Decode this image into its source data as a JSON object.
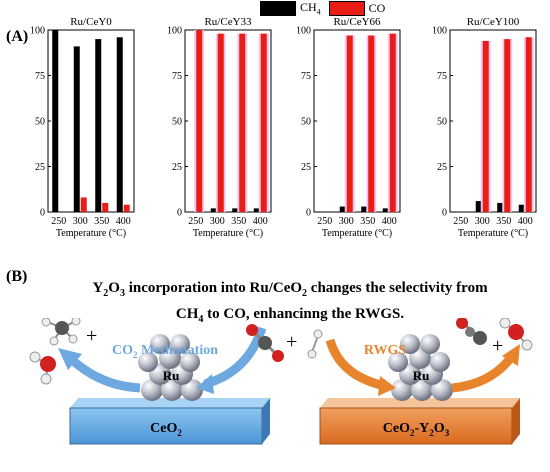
{
  "panel_a": {
    "label": "(A)"
  },
  "panel_b": {
    "label": "(B)"
  },
  "legend": [
    {
      "label_main": "CH",
      "label_sub": "4",
      "color": "#000000"
    },
    {
      "label_main": "CO",
      "label_sub": "",
      "color": "#e81e16"
    }
  ],
  "colors": {
    "ch4": "#000000",
    "co": "#e81e16",
    "glow": "#f7c6f0",
    "methanation_arrow": "#6ea8e0",
    "rwgs_arrow": "#e8842c",
    "ceo2_fill": "#6fb1e6",
    "mixed_fill": "#e8853a"
  },
  "chart_data": [
    {
      "type": "bar",
      "title": "Ru/CeY0",
      "categories": [
        "250",
        "300",
        "350",
        "400"
      ],
      "xlabel": "Temperature (°C)",
      "ylim": [
        0,
        100
      ],
      "yticks": [
        "0",
        "25",
        "50",
        "75",
        "100"
      ],
      "series": [
        {
          "name": "CH4",
          "values": [
            100,
            91,
            95,
            96
          ]
        },
        {
          "name": "CO",
          "values": [
            0,
            8,
            5,
            4
          ]
        }
      ]
    },
    {
      "type": "bar",
      "title": "Ru/CeY33",
      "categories": [
        "250",
        "300",
        "350",
        "400"
      ],
      "xlabel": "Temperature (°C)",
      "ylim": [
        0,
        100
      ],
      "yticks": [
        "0",
        "25",
        "50",
        "75",
        "100"
      ],
      "series": [
        {
          "name": "CH4",
          "values": [
            0,
            2,
            2,
            2
          ]
        },
        {
          "name": "CO",
          "values": [
            100,
            98,
            98,
            98
          ]
        }
      ]
    },
    {
      "type": "bar",
      "title": "Ru/CeY66",
      "categories": [
        "250",
        "300",
        "350",
        "400"
      ],
      "xlabel": "Temperature (°C)",
      "ylim": [
        0,
        100
      ],
      "yticks": [
        "0",
        "25",
        "50",
        "75",
        "100"
      ],
      "series": [
        {
          "name": "CH4",
          "values": [
            0,
            3,
            3,
            2
          ]
        },
        {
          "name": "CO",
          "values": [
            0,
            97,
            97,
            98
          ]
        }
      ]
    },
    {
      "type": "bar",
      "title": "Ru/CeY100",
      "categories": [
        "250",
        "300",
        "350",
        "400"
      ],
      "xlabel": "Temperature (°C)",
      "ylim": [
        0,
        100
      ],
      "yticks": [
        "0",
        "25",
        "50",
        "75",
        "100"
      ],
      "series": [
        {
          "name": "CH4",
          "values": [
            0,
            6,
            5,
            4
          ]
        },
        {
          "name": "CO",
          "values": [
            0,
            94,
            95,
            96
          ]
        }
      ]
    }
  ],
  "headline": {
    "line1": {
      "a": "Y",
      "a_sub": "2",
      "b": "O",
      "b_sub": "3",
      "c": " incorporation into Ru/CeO",
      "c_sub": "2",
      "d": " changes the selectivity from"
    },
    "line2": {
      "a": "CH",
      "a_sub": "4",
      "b": " to CO, enhancinng the RWGS."
    }
  },
  "methanation": {
    "label_main": "CO",
    "label_sub": "2",
    "label_rest": " Methanation"
  },
  "rwgs": {
    "label": "RWGS"
  },
  "catalyst": {
    "ru": "Ru"
  },
  "substrate_left": {
    "main": "CeO",
    "sub": "2"
  },
  "substrate_right": {
    "a": "CeO",
    "a_sub": "2",
    "b": "-Y",
    "b_sub": "2",
    "c": "O",
    "c_sub": "3"
  },
  "symbols": {
    "plus": "+"
  }
}
